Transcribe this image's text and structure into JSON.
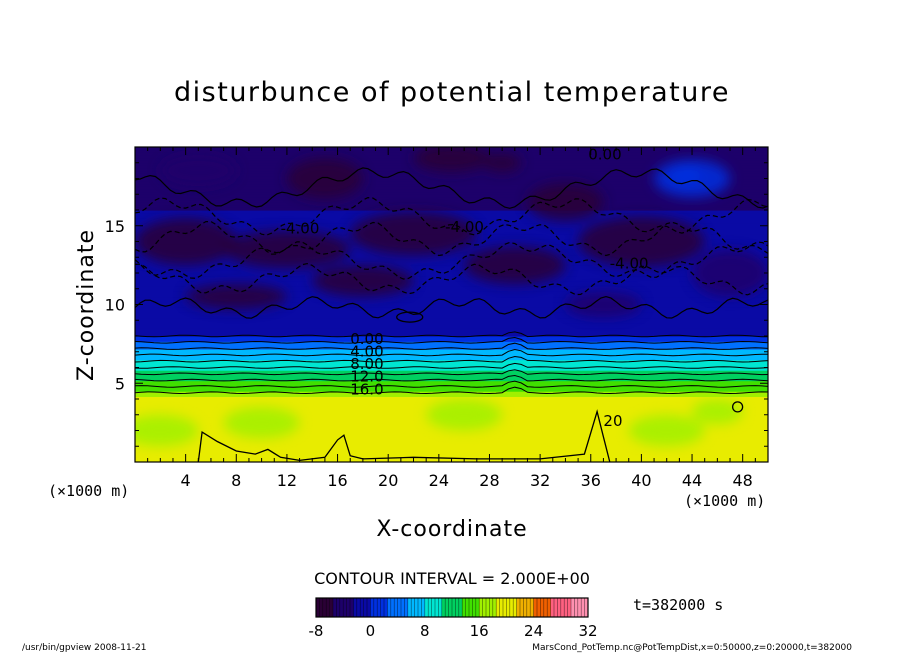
{
  "chart_data": {
    "type": "heatmap",
    "title": "disturbunce of potential temperature",
    "xlabel": "X-coordinate",
    "ylabel": "Z-coordinate",
    "x_unit": "(×1000 m)",
    "y_unit": "(×1000 m)",
    "xlim": [
      0,
      50
    ],
    "ylim": [
      0,
      20
    ],
    "x_ticks": [
      4,
      8,
      12,
      16,
      20,
      24,
      28,
      32,
      36,
      40,
      44,
      48
    ],
    "y_ticks": [
      5,
      10,
      15
    ],
    "contour_interval_text": "CONTOUR INTERVAL = 2.000E+00",
    "time_text": "t=382000 s",
    "colorbar": {
      "range": [
        -8,
        32
      ],
      "tick_labels": [
        "-8",
        "0",
        "8",
        "16",
        "24",
        "32"
      ],
      "tick_values": [
        -8,
        0,
        8,
        16,
        24,
        32
      ],
      "colors": [
        "#2a0035",
        "#1d006a",
        "#0a0aa5",
        "#0030e0",
        "#0070ff",
        "#00b8ff",
        "#00e6d2",
        "#00d060",
        "#40e000",
        "#a0f000",
        "#e8ec00",
        "#f0b000",
        "#f06000",
        "#ff6080",
        "#ff90b0"
      ]
    },
    "profile_z": [
      0,
      4,
      4.5,
      5,
      5.5,
      6,
      6.5,
      7,
      7.5,
      8,
      20
    ],
    "profile_values": [
      20,
      20,
      16,
      14,
      12,
      10,
      8,
      6,
      4,
      0,
      -4
    ],
    "contour_labels": [
      {
        "x": 35.8,
        "z": 19.2,
        "text": "0.00"
      },
      {
        "x": 11.5,
        "z": 14.5,
        "text": "-4.00"
      },
      {
        "x": 24.5,
        "z": 14.6,
        "text": "-4.00"
      },
      {
        "x": 37.5,
        "z": 12.3,
        "text": "-4.00"
      },
      {
        "x": 17.0,
        "z": 7.5,
        "text": "0.00"
      },
      {
        "x": 17.0,
        "z": 6.7,
        "text": "4.00"
      },
      {
        "x": 17.0,
        "z": 5.9,
        "text": "8.00"
      },
      {
        "x": 17.0,
        "z": 5.1,
        "text": "12.0"
      },
      {
        "x": 17.0,
        "z": 4.3,
        "text": "16.0"
      },
      {
        "x": 37.0,
        "z": 2.3,
        "text": "20"
      }
    ]
  },
  "footer": {
    "left": "/usr/bin/gpview  2008-11-21",
    "right": "MarsCond_PotTemp.nc@PotTempDist,x=0:50000,z=0:20000,t=382000"
  }
}
